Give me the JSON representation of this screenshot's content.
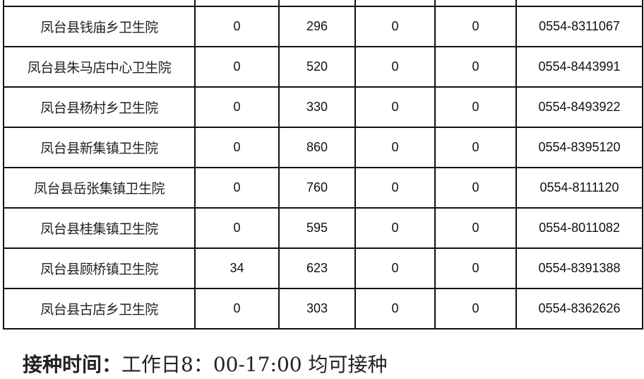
{
  "rows": [
    {
      "name": "",
      "c1": "",
      "c2": "",
      "c3": "",
      "c4": "",
      "phone": ""
    },
    {
      "name": "凤台县钱庙乡卫生院",
      "c1": "0",
      "c2": "296",
      "c3": "0",
      "c4": "0",
      "phone": "0554-8311067"
    },
    {
      "name": "凤台县朱马店中心卫生院",
      "c1": "0",
      "c2": "520",
      "c3": "0",
      "c4": "0",
      "phone": "0554-8443991"
    },
    {
      "name": "凤台县杨村乡卫生院",
      "c1": "0",
      "c2": "330",
      "c3": "0",
      "c4": "0",
      "phone": "0554-8493922"
    },
    {
      "name": "凤台县新集镇卫生院",
      "c1": "0",
      "c2": "860",
      "c3": "0",
      "c4": "0",
      "phone": "0554-8395120"
    },
    {
      "name": "凤台县岳张集镇卫生院",
      "c1": "0",
      "c2": "760",
      "c3": "0",
      "c4": "0",
      "phone": "0554-8111120"
    },
    {
      "name": "凤台县桂集镇卫生院",
      "c1": "0",
      "c2": "595",
      "c3": "0",
      "c4": "0",
      "phone": "0554-8011082"
    },
    {
      "name": "凤台县顾桥镇卫生院",
      "c1": "34",
      "c2": "623",
      "c3": "0",
      "c4": "0",
      "phone": "0554-8391388"
    },
    {
      "name": "凤台县古店乡卫生院",
      "c1": "0",
      "c2": "303",
      "c3": "0",
      "c4": "0",
      "phone": "0554-8362626"
    }
  ],
  "footer": {
    "label": "接种时间：",
    "text": "工作日8：00-17:00 均可接种"
  }
}
